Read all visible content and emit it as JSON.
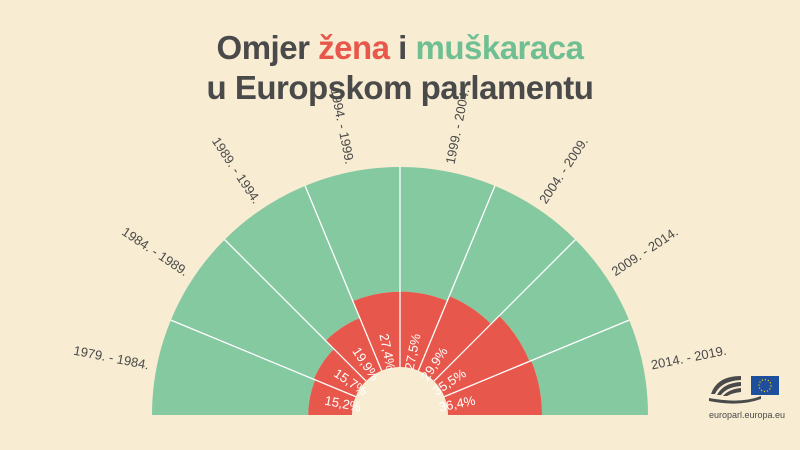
{
  "title": {
    "line1_before": "Omjer ",
    "women": "žena",
    "line1_middle": " i ",
    "men": "muškaraca",
    "line2": "u Europskom parlamentu"
  },
  "colors": {
    "women": "#e8574b",
    "men": "#85c9a1",
    "background": "#f8ecd2",
    "text": "#4a4a4a"
  },
  "source_label": "europarl.europa.eu",
  "logo_icon": "european-parliament-logo-icon",
  "chart_data": {
    "type": "pie",
    "shape": "semicircle-parliament",
    "unit": "%",
    "categories": [
      "1979. - 1984.",
      "1984. - 1989.",
      "1989. - 1994.",
      "1994. - 1999.",
      "1999. - 2004.",
      "2004. - 2009.",
      "2009. - 2014.",
      "2014. - 2019."
    ],
    "series": [
      {
        "name": "žena",
        "values": [
          15.2,
          15.7,
          19.9,
          27.4,
          27.5,
          29.9,
          35.5,
          36.4
        ]
      },
      {
        "name": "muškaraca",
        "values": [
          84.8,
          84.3,
          80.1,
          72.6,
          72.5,
          70.1,
          64.5,
          63.6
        ]
      }
    ],
    "value_labels": [
      "15,2%",
      "15,7%",
      "19,9%",
      "27,4%",
      "27,5%",
      "29,9%",
      "35,5%",
      "36,4%"
    ]
  }
}
